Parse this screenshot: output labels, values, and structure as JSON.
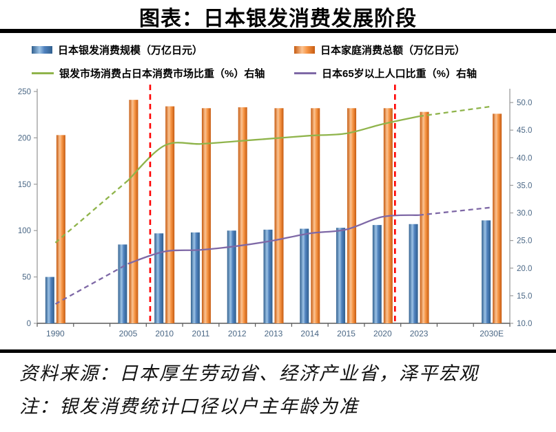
{
  "page": {
    "title": "图表：日本银发消费发展阶段",
    "source_line": "资料来源：日本厚生劳动省、经济产业省，泽平宏观",
    "note_line": "注：银发消费统计口径以户主年龄为准"
  },
  "colors": {
    "bar_blue_base": "#4F81BD",
    "bar_blue_light": "#9DC3E6",
    "bar_blue_dark": "#31608F",
    "bar_orange_base": "#F79646",
    "bar_orange_light": "#FBC392",
    "bar_orange_dark": "#C65B11",
    "line_green": "#8FB44B",
    "line_purple": "#7E68A6",
    "divider_red": "#FF0000",
    "axis_line": "#9C9C9C",
    "axis_line_bottom": "#595959",
    "axis_label": "#4A6785",
    "rule_black": "#000000"
  },
  "chart_data": {
    "type": "combo-bar-line",
    "title": "图表：日本银发消费发展阶段",
    "grid": "off",
    "legend_position": "top",
    "categories": [
      "1990",
      "2005",
      "2010",
      "2011",
      "2012",
      "2013",
      "2014",
      "2015",
      "2020",
      "2023",
      "2030E"
    ],
    "category_slots": [
      0,
      2,
      3,
      4,
      5,
      6,
      7,
      8,
      9,
      10,
      12
    ],
    "total_slots": 13,
    "left_axis": {
      "min": 0,
      "max": 250,
      "ticks": [
        0,
        50,
        100,
        150,
        200,
        250
      ]
    },
    "right_axis": {
      "min": 10,
      "max": 52,
      "ticks": [
        10,
        15,
        20,
        25,
        30,
        35,
        40,
        45,
        50
      ],
      "decimals": 1
    },
    "bar_series": [
      {
        "name": "日本银发消费规模（万亿日元）",
        "axis": "left",
        "palette": "blue",
        "values": [
          50,
          85,
          97,
          98,
          100,
          101,
          102,
          103,
          106,
          107,
          111
        ]
      },
      {
        "name": "日本家庭消费总额（万亿日元）",
        "axis": "left",
        "palette": "orange",
        "values": [
          203,
          241,
          234,
          232,
          233,
          232,
          232,
          232,
          232,
          228,
          226
        ]
      }
    ],
    "line_series": [
      {
        "name": "银发市场消费占日本消费市场比重（%）右轴",
        "axis": "right",
        "palette": "green",
        "values": [
          24.6,
          35.9,
          42.2,
          42.5,
          43.0,
          43.5,
          44.0,
          44.4,
          46.1,
          47.5,
          49.3
        ],
        "solid_from": 1,
        "solid_to": 9
      },
      {
        "name": "日本65岁以上人口比重（%）右轴",
        "axis": "right",
        "palette": "purple",
        "values": [
          13.5,
          20.8,
          23.0,
          23.3,
          24.0,
          25.0,
          26.3,
          27.0,
          29.3,
          29.6,
          31.0
        ],
        "solid_from": 1,
        "solid_to": 9
      }
    ],
    "stage_dividers": [
      {
        "after_category": "2005",
        "x_frac": 0.239
      },
      {
        "after_category": "2020",
        "x_frac": 0.757
      }
    ]
  }
}
